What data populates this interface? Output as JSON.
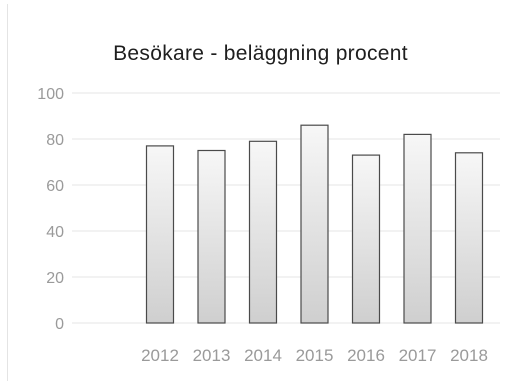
{
  "chart_data": {
    "type": "bar",
    "title": "Besökare  - beläggning procent",
    "xlabel": "",
    "ylabel": "",
    "categories": [
      "2012",
      "2013",
      "2014",
      "2015",
      "2016",
      "2017",
      "2018"
    ],
    "values": [
      77,
      75,
      79,
      86,
      73,
      82,
      74
    ],
    "ylim": [
      0,
      100
    ],
    "yticks": [
      0,
      20,
      40,
      60,
      80,
      100
    ],
    "grid": true,
    "legend": "none",
    "colors": {
      "bar_top": "#f7f7f7",
      "bar_bottom": "#cfcfcf",
      "bar_edge": "#4a4a4a",
      "grid": "#e6e6e6",
      "tick_text": "#9a9a9a"
    }
  }
}
